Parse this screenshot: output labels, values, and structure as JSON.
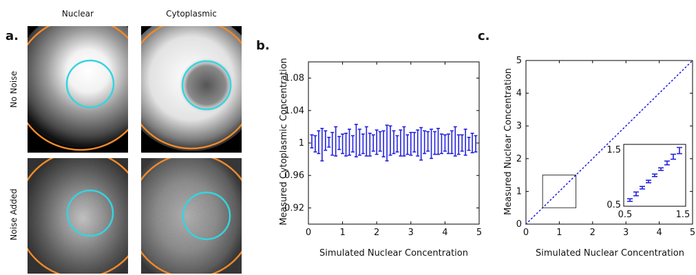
{
  "panel_a": {
    "label": "a.",
    "columns": [
      "Nuclear",
      "Cytoplasmic"
    ],
    "rows": [
      "No Noise",
      "Noise Added"
    ],
    "colors": {
      "outer_circle": "#f0892a",
      "inner_circle": "#35d4e0"
    }
  },
  "panel_b": {
    "label": "b."
  },
  "panel_c": {
    "label": "c."
  },
  "chart_data": [
    {
      "type": "errorbar",
      "panel": "b",
      "xlabel": "Simulated Nuclear Concentration",
      "ylabel": "Measured Cytoplasmic Concentration",
      "xlim": [
        0,
        5
      ],
      "ylim": [
        0.9,
        1.1
      ],
      "xticks": [
        0,
        1,
        2,
        3,
        4,
        5
      ],
      "yticks": [
        0.92,
        0.96,
        1,
        1.04,
        1.08
      ],
      "ytick_labels": [
        "0.92",
        "0.96",
        "1",
        "1.04",
        "1.08"
      ],
      "color": "#2222dd",
      "x": [
        0.1,
        0.2,
        0.3,
        0.4,
        0.5,
        0.6,
        0.7,
        0.8,
        0.9,
        1.0,
        1.1,
        1.2,
        1.3,
        1.4,
        1.5,
        1.6,
        1.7,
        1.8,
        1.9,
        2.0,
        2.1,
        2.2,
        2.3,
        2.4,
        2.5,
        2.6,
        2.7,
        2.8,
        2.9,
        3.0,
        3.1,
        3.2,
        3.3,
        3.4,
        3.5,
        3.6,
        3.7,
        3.8,
        3.9,
        4.0,
        4.1,
        4.2,
        4.3,
        4.4,
        4.5,
        4.6,
        4.7,
        4.8,
        4.9
      ],
      "y": [
        1.002,
        0.999,
        1.001,
        0.998,
        1.003,
        1.001,
        0.999,
        1.002,
        1.0,
        0.999,
        0.998,
        1.001,
        0.999,
        1.003,
        1.001,
        0.999,
        1.002,
        0.998,
        1.0,
        1.001,
        1.002,
        0.999,
        1.0,
        1.003,
        1.001,
        0.999,
        1.0,
        1.002,
        0.998,
        0.999,
        1.001,
        1.0,
        0.999,
        1.001,
        1.002,
        0.999,
        1.0,
        1.002,
        0.999,
        1.0,
        0.999,
        1.001,
        1.002,
        0.998,
        1.0,
        1.001,
        0.999,
        1.0,
        0.999
      ],
      "err": [
        0.008,
        0.01,
        0.014,
        0.02,
        0.012,
        0.006,
        0.014,
        0.018,
        0.008,
        0.012,
        0.014,
        0.016,
        0.01,
        0.02,
        0.016,
        0.012,
        0.018,
        0.014,
        0.01,
        0.015,
        0.012,
        0.016,
        0.022,
        0.018,
        0.014,
        0.01,
        0.016,
        0.018,
        0.012,
        0.014,
        0.012,
        0.016,
        0.02,
        0.014,
        0.012,
        0.018,
        0.014,
        0.016,
        0.012,
        0.01,
        0.012,
        0.014,
        0.018,
        0.012,
        0.01,
        0.016,
        0.008,
        0.012,
        0.01
      ]
    },
    {
      "type": "errorbar",
      "panel": "c",
      "xlabel": "Simulated Nuclear Concentration",
      "ylabel": "Measured Nuclear Concentration",
      "xlim": [
        0,
        5
      ],
      "ylim": [
        0,
        5
      ],
      "xticks": [
        0,
        1,
        2,
        3,
        4,
        5
      ],
      "yticks": [
        0,
        1,
        2,
        3,
        4,
        5
      ],
      "color": "#2222dd",
      "line": {
        "x": [
          0,
          5
        ],
        "y": [
          0,
          5
        ],
        "style": "dotted"
      },
      "inset_box": {
        "xlim": [
          0.5,
          1.5
        ],
        "ylim": [
          0.5,
          1.5
        ]
      },
      "inset": {
        "xlim": [
          0.5,
          1.5
        ],
        "ylim": [
          0.5,
          1.5
        ],
        "xtick_labels": [
          "0.5",
          "1.5"
        ],
        "ytick_labels": [
          "0.5",
          "1.5"
        ],
        "x": [
          0.6,
          0.7,
          0.8,
          0.9,
          1.0,
          1.1,
          1.2,
          1.3,
          1.4
        ],
        "y": [
          0.6,
          0.7,
          0.8,
          0.9,
          1.0,
          1.1,
          1.2,
          1.3,
          1.4
        ],
        "err": [
          0.02,
          0.03,
          0.02,
          0.02,
          0.02,
          0.02,
          0.03,
          0.04,
          0.05
        ]
      }
    }
  ]
}
